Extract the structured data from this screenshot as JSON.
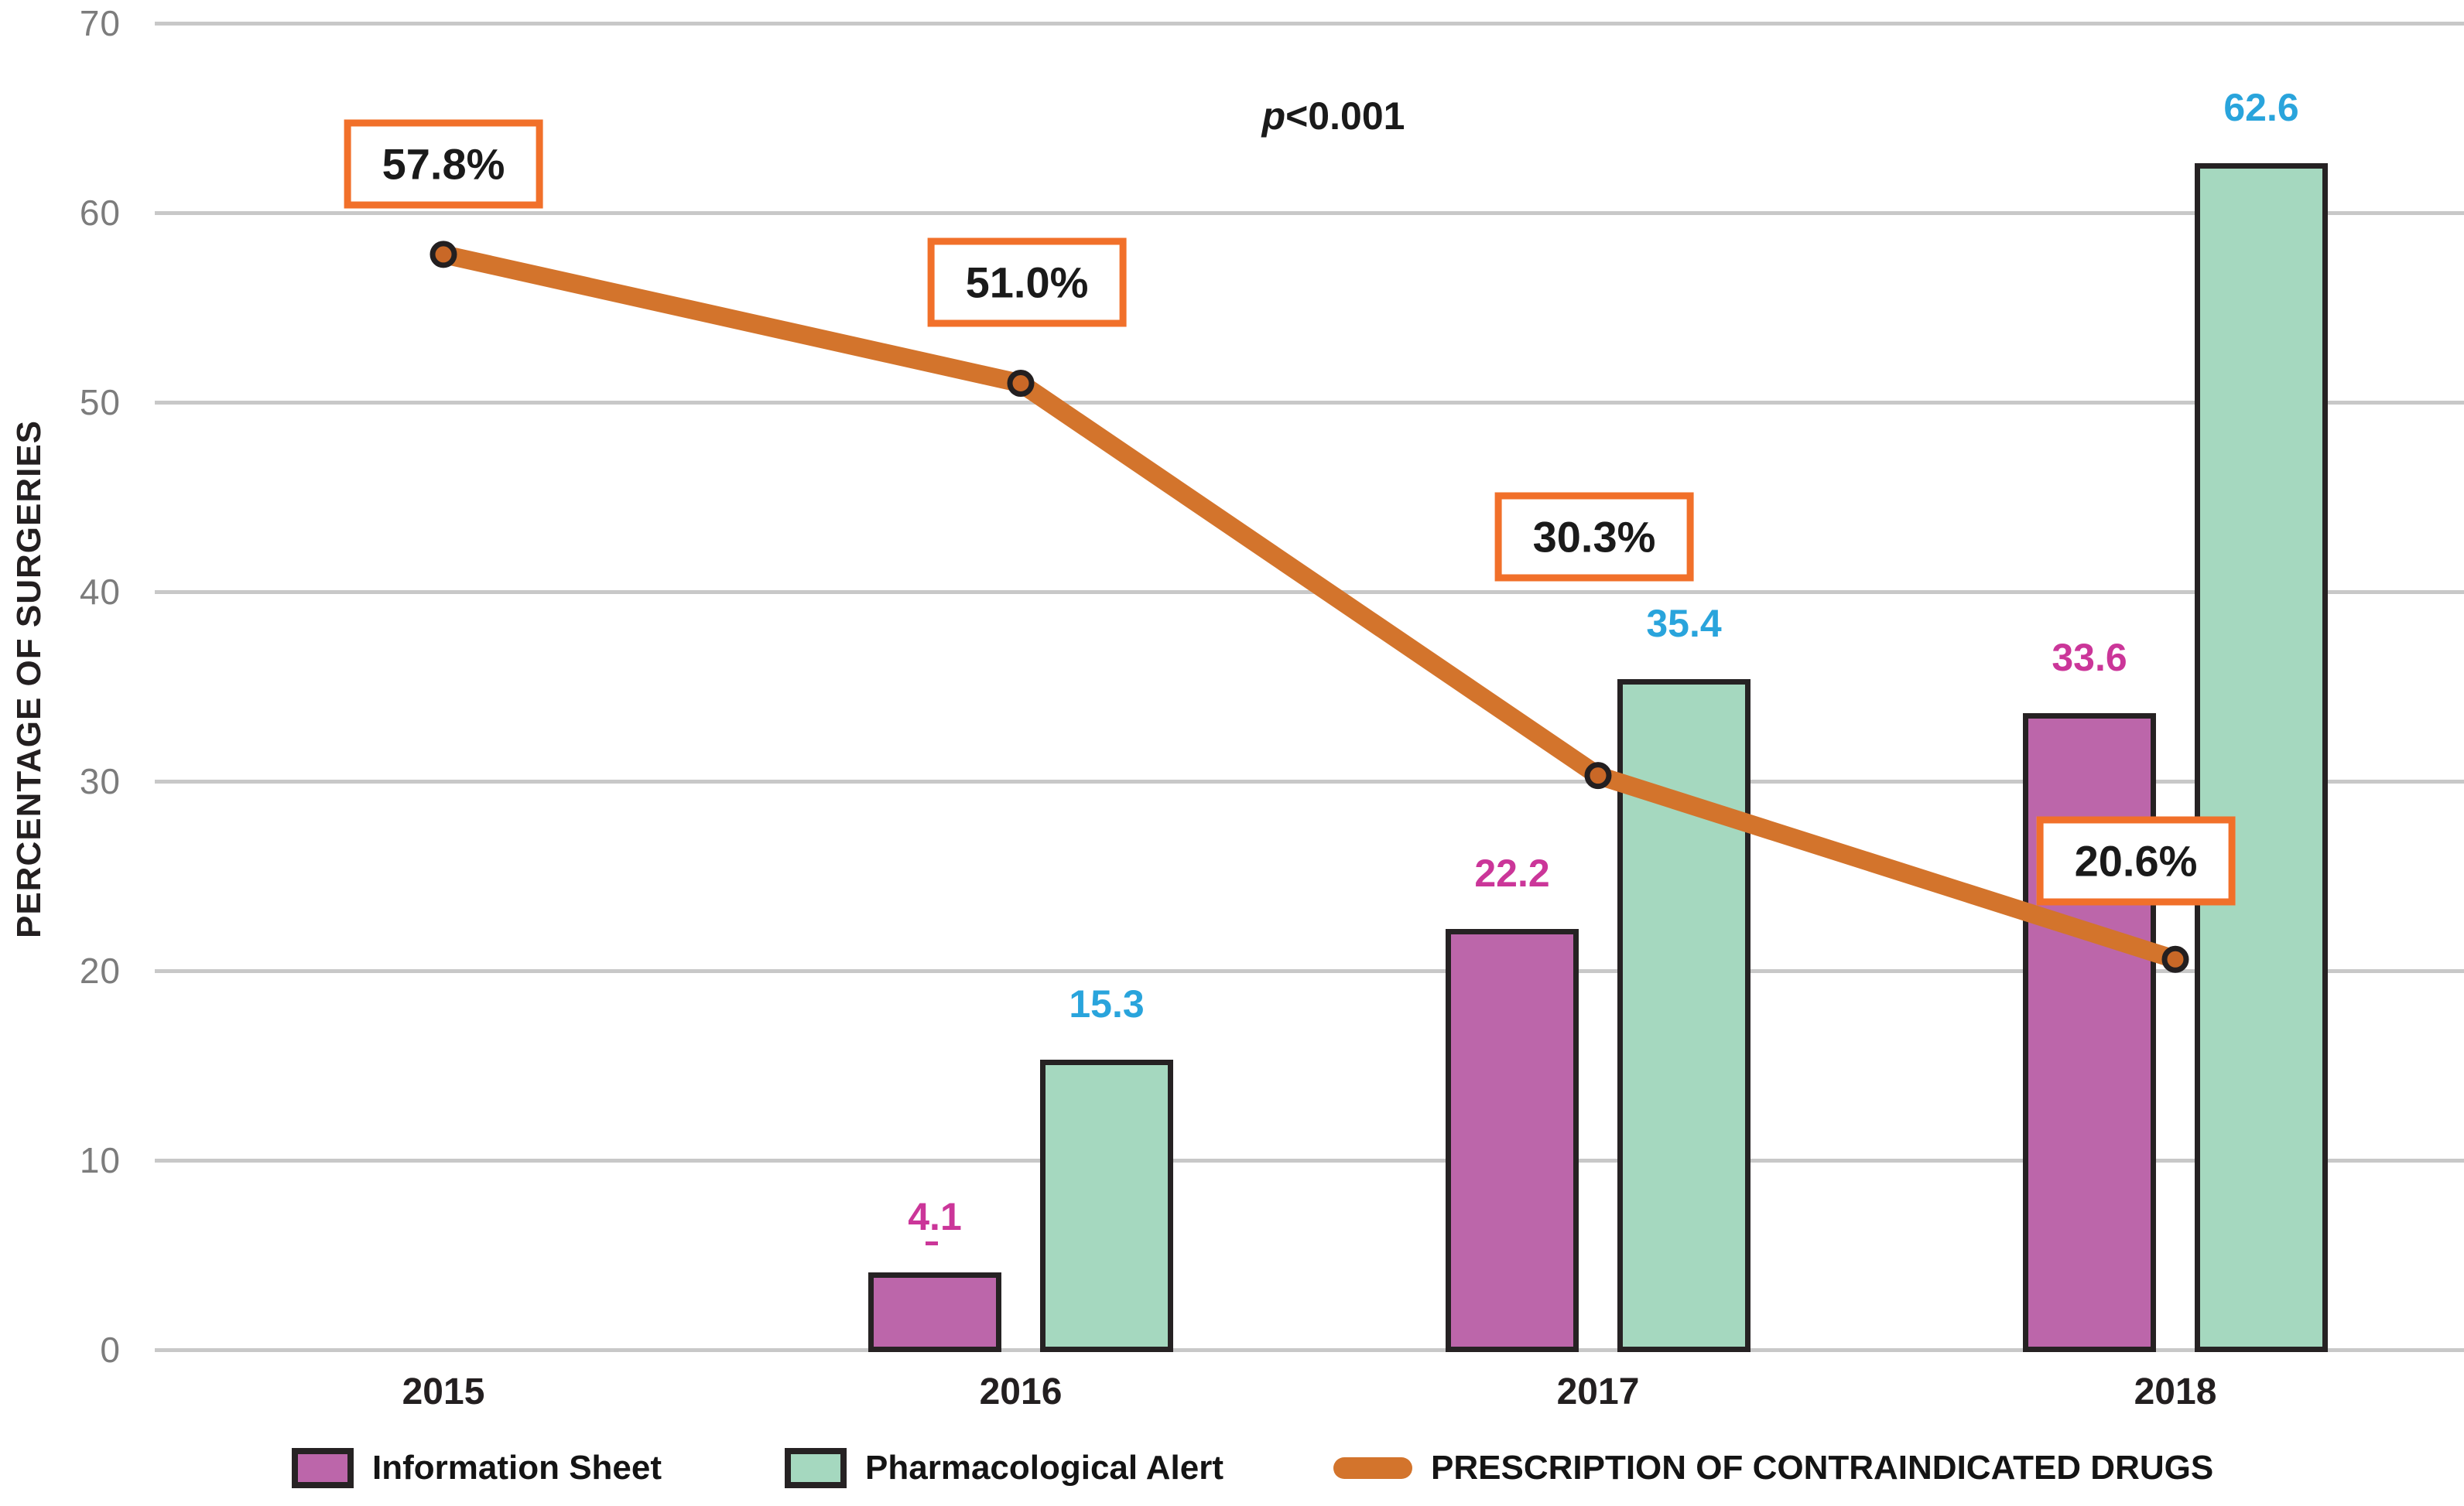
{
  "colors": {
    "magenta_bar": "#bc66aa",
    "green_bar": "#a5d8bf",
    "bar_border": "#262223",
    "pink_label": "#cb3699",
    "blue_label": "#29a4dc",
    "line_orange": "#d3742c",
    "marker_fill": "#c96827",
    "marker_ring": "#231f20",
    "box_border": "#f1702a",
    "grid": "#c8c8c8",
    "tick_text": "#7c7c7c",
    "text_dark": "#231f20"
  },
  "chart_data": {
    "type": "combo_bar_line",
    "title": "",
    "categories": [
      "2015",
      "2016",
      "2017",
      "2018"
    ],
    "series": [
      {
        "name": "Information Sheet",
        "type": "bar",
        "color_key": "magenta_bar",
        "label_color_key": "pink_label",
        "values": [
          null,
          4.1,
          22.2,
          33.6
        ],
        "value_labels": [
          "",
          "4.1",
          "22.2",
          "33.6"
        ]
      },
      {
        "name": "Pharmacological Alert",
        "type": "bar",
        "color_key": "green_bar",
        "label_color_key": "blue_label",
        "values": [
          null,
          15.3,
          35.4,
          62.6
        ],
        "value_labels": [
          "",
          "15.3",
          "35.4",
          "62.6"
        ]
      },
      {
        "name": "PRESCRIPTION OF CONTRAINDICATED DRUGS",
        "type": "line",
        "color_key": "line_orange",
        "values": [
          57.8,
          51.0,
          30.3,
          20.6
        ],
        "value_labels": [
          "57.8%",
          "51.0%",
          "30.3%",
          "20.6%"
        ]
      }
    ],
    "annotation": {
      "prefix": "p",
      "rest": "<0.001"
    },
    "ylabel": "PERCENTAGE OF SURGERIES",
    "xlabel": "",
    "ylim": [
      0,
      70
    ],
    "yticks": [
      0,
      10,
      20,
      30,
      40,
      50,
      60,
      70
    ],
    "grid": true,
    "legend_position": "bottom"
  }
}
